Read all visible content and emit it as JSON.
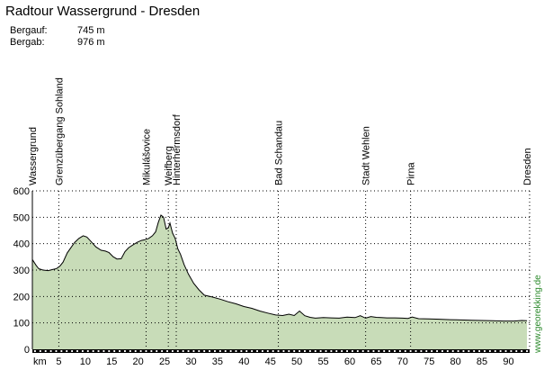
{
  "title": "Radtour Wassergrund - Dresden",
  "stats": {
    "climb_label": "Bergauf:",
    "climb_value": "745 m",
    "descent_label": "Bergab:",
    "descent_value": "976 m"
  },
  "watermark": "www.georekking.de",
  "colors": {
    "fill": "#c8dcb8",
    "line": "#000000",
    "grid": "#000000"
  },
  "chart_data": {
    "type": "area",
    "title": "",
    "xlabel": "km",
    "ylabel": "",
    "xlim": [
      0,
      94
    ],
    "ylim": [
      0,
      600
    ],
    "grid": true,
    "x_ticks": [
      5,
      10,
      15,
      20,
      25,
      30,
      35,
      40,
      45,
      50,
      55,
      60,
      65,
      70,
      75,
      80,
      85,
      90
    ],
    "y_ticks": [
      0,
      100,
      200,
      300,
      400,
      500,
      600
    ],
    "waypoints": [
      {
        "name": "Wassergrund",
        "km": 0
      },
      {
        "name": "Grenzübergang Sohland",
        "km": 5
      },
      {
        "name": "Mikulášovice",
        "km": 21.5
      },
      {
        "name": "Weifberg",
        "km": 25.7
      },
      {
        "name": "Hinterhermsdorf",
        "km": 27.2
      },
      {
        "name": "Bad Schandau",
        "km": 46.5
      },
      {
        "name": "Stadt Wehlen",
        "km": 63
      },
      {
        "name": "Pirna",
        "km": 71.5
      },
      {
        "name": "Dresden",
        "km": 93.5
      }
    ],
    "series": [
      {
        "x": [
          0,
          0.7,
          1.2,
          2,
          3,
          3.8,
          4.5,
          5.2,
          5.8,
          6.6,
          7.3,
          8,
          8.8,
          9.6,
          10.3,
          11,
          12,
          13,
          13.8,
          14.5,
          15.3,
          16,
          16.8,
          17.5,
          18.2,
          19,
          19.8,
          20.6,
          21.3,
          22,
          22.7,
          23.3,
          23.8,
          24.3,
          24.8,
          25.3,
          25.7,
          26,
          26.5,
          27,
          27.5,
          28,
          28.7,
          29.5,
          30.5,
          31.5,
          32.5,
          34,
          35.5,
          37,
          38.5,
          40,
          41.5,
          43,
          44.5,
          46,
          47.3,
          48.5,
          49.5,
          50.5,
          51.5,
          52.5,
          53.5,
          55,
          56.5,
          58,
          59.5,
          61,
          62,
          63,
          64,
          65,
          66,
          67,
          68.5,
          70,
          71,
          71.8,
          73,
          75,
          77,
          79,
          81,
          83,
          85,
          87,
          89,
          91,
          92.5,
          93.5
        ],
        "y": [
          340,
          318,
          305,
          300,
          298,
          302,
          305,
          315,
          330,
          365,
          385,
          405,
          420,
          430,
          425,
          410,
          388,
          375,
          372,
          366,
          350,
          342,
          343,
          370,
          385,
          395,
          405,
          412,
          415,
          420,
          430,
          445,
          480,
          508,
          500,
          455,
          460,
          478,
          440,
          420,
          380,
          360,
          320,
          285,
          250,
          225,
          205,
          198,
          190,
          180,
          172,
          162,
          155,
          145,
          137,
          130,
          128,
          133,
          128,
          145,
          127,
          121,
          118,
          120,
          119,
          118,
          122,
          120,
          127,
          118,
          124,
          121,
          120,
          119,
          119,
          118,
          117,
          122,
          116,
          115,
          114,
          112,
          111,
          110,
          109,
          108,
          107,
          107,
          109,
          108
        ]
      }
    ]
  }
}
